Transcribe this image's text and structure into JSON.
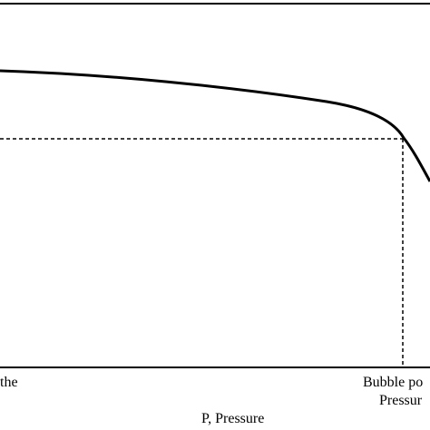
{
  "chart_data": {
    "type": "line",
    "xlabel": "P, Pressure",
    "ylabel": "",
    "annotations": {
      "left_tick_fragment": "the",
      "bubble_point_line1": "Bubble po",
      "bubble_point_line2": "Pressur"
    },
    "x_range": [
      0,
      100
    ],
    "y_range": [
      0,
      100
    ],
    "bubble_point": {
      "x": 94,
      "y": 82
    },
    "series": [
      {
        "values": [
          [
            0,
            100
          ],
          [
            10,
            99
          ],
          [
            20,
            97.5
          ],
          [
            30,
            96
          ],
          [
            40,
            94
          ],
          [
            50,
            92
          ],
          [
            60,
            90
          ],
          [
            70,
            88
          ],
          [
            80,
            86
          ],
          [
            85,
            84
          ],
          [
            90,
            80
          ],
          [
            94,
            74
          ],
          [
            96,
            72
          ],
          [
            99,
            60
          ]
        ]
      }
    ],
    "grid": false,
    "legend": "none"
  }
}
